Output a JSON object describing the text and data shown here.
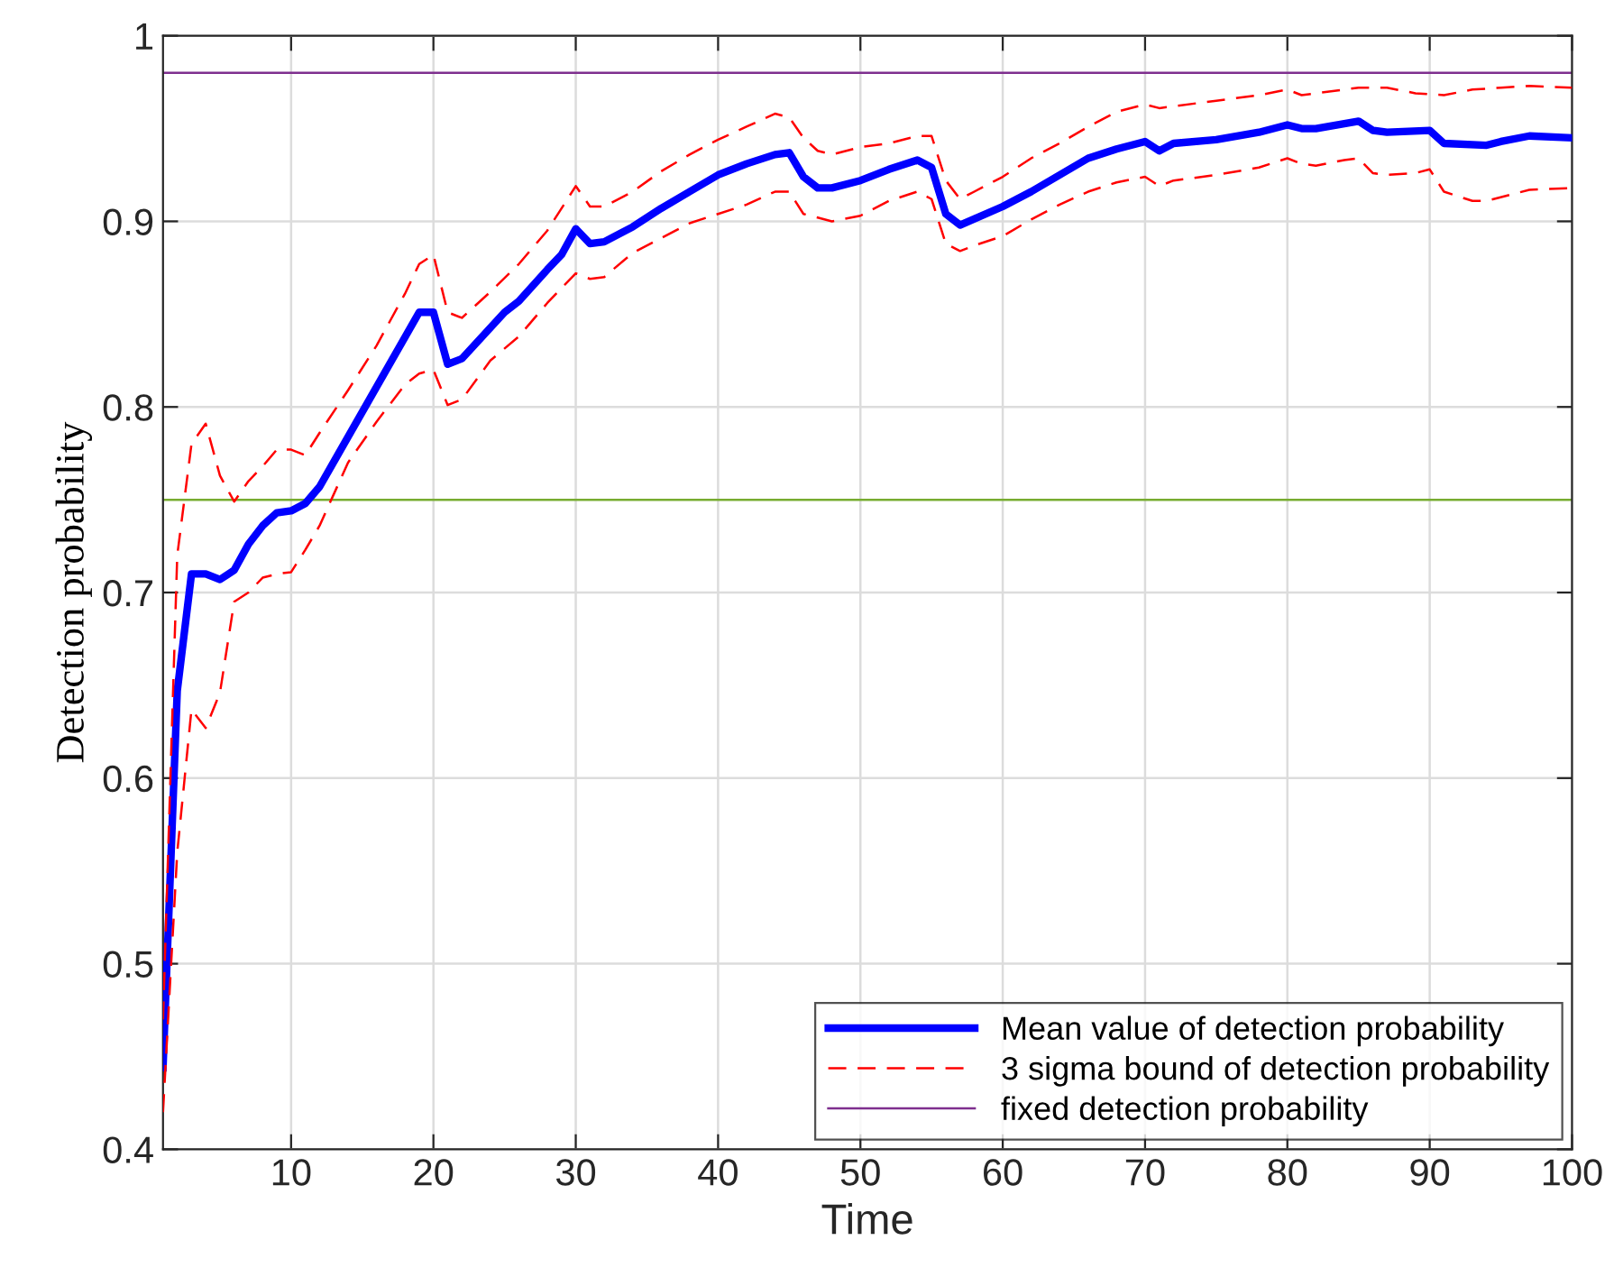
{
  "chart_data": {
    "type": "line",
    "xlabel": "Time",
    "ylabel": "Detection probability",
    "xlim": [
      1,
      100
    ],
    "ylim": [
      0.4,
      1
    ],
    "xticks": [
      10,
      20,
      30,
      40,
      50,
      60,
      70,
      80,
      90,
      100
    ],
    "yticks": [
      0.4,
      0.5,
      0.6,
      0.7,
      0.8,
      0.9,
      1
    ],
    "grid": true,
    "legend": "bottom right",
    "series": [
      {
        "name": "Mean value of detection probability",
        "color": "#0000ff",
        "line_style": "solid",
        "x": [
          1,
          2,
          3,
          4,
          5,
          6,
          7,
          8,
          9,
          10,
          11,
          12,
          19,
          20,
          21,
          22,
          25,
          26,
          28,
          29,
          30,
          31,
          32,
          34,
          36,
          38,
          40,
          42,
          44,
          45,
          46,
          47,
          48,
          50,
          52,
          54,
          55,
          56,
          57,
          60,
          62,
          64,
          66,
          68,
          70,
          71,
          72,
          75,
          78,
          80,
          81,
          82,
          85,
          86,
          87,
          90,
          91,
          94,
          95,
          97,
          100
        ],
        "values": [
          0.444,
          0.647,
          0.71,
          0.71,
          0.707,
          0.712,
          0.726,
          0.736,
          0.743,
          0.744,
          0.748,
          0.757,
          0.851,
          0.851,
          0.823,
          0.826,
          0.851,
          0.857,
          0.874,
          0.882,
          0.896,
          0.888,
          0.889,
          0.897,
          0.907,
          0.916,
          0.925,
          0.931,
          0.936,
          0.937,
          0.924,
          0.918,
          0.918,
          0.922,
          0.928,
          0.933,
          0.929,
          0.904,
          0.898,
          0.908,
          0.916,
          0.925,
          0.934,
          0.939,
          0.943,
          0.938,
          0.942,
          0.944,
          0.948,
          0.952,
          0.95,
          0.95,
          0.954,
          0.949,
          0.948,
          0.949,
          0.942,
          0.941,
          0.943,
          0.946,
          0.945
        ]
      },
      {
        "name": "3 sigma bound of detection probability",
        "color": "#ff0000",
        "line_style": "dashed",
        "x": [
          1,
          2,
          3,
          4,
          5,
          6,
          7,
          8,
          9,
          10,
          11,
          12,
          14,
          16,
          18,
          19,
          20,
          21,
          22,
          24,
          26,
          28,
          30,
          31,
          32,
          34,
          36,
          38,
          40,
          42,
          44,
          45,
          46,
          47,
          48,
          50,
          52,
          54,
          55,
          56,
          57,
          58,
          60,
          62,
          64,
          66,
          68,
          70,
          71,
          72,
          75,
          78,
          80,
          81,
          82,
          85,
          87,
          89,
          91,
          93,
          95,
          97,
          100
        ],
        "values": [
          0.47,
          0.72,
          0.78,
          0.791,
          0.763,
          0.749,
          0.76,
          0.768,
          0.777,
          0.777,
          0.774,
          0.786,
          0.809,
          0.833,
          0.861,
          0.877,
          0.882,
          0.851,
          0.848,
          0.862,
          0.877,
          0.895,
          0.919,
          0.908,
          0.908,
          0.916,
          0.927,
          0.936,
          0.944,
          0.951,
          0.958,
          0.956,
          0.945,
          0.938,
          0.936,
          0.94,
          0.942,
          0.946,
          0.946,
          0.922,
          0.912,
          0.916,
          0.924,
          0.934,
          0.942,
          0.951,
          0.959,
          0.963,
          0.961,
          0.962,
          0.965,
          0.968,
          0.971,
          0.968,
          0.969,
          0.972,
          0.972,
          0.969,
          0.968,
          0.971,
          0.972,
          0.973,
          0.972
        ]
      },
      {
        "color": "#ff0000",
        "line_style": "dashed",
        "x": [
          1,
          2,
          3,
          4,
          5,
          6,
          7,
          8,
          9,
          10,
          11,
          12,
          14,
          16,
          18,
          19,
          20,
          21,
          22,
          24,
          26,
          28,
          30,
          31,
          32,
          34,
          36,
          38,
          40,
          42,
          44,
          45,
          46,
          47,
          48,
          50,
          52,
          54,
          55,
          56,
          57,
          58,
          60,
          62,
          64,
          66,
          68,
          70,
          71,
          72,
          75,
          78,
          80,
          81,
          82,
          84,
          85,
          86,
          87,
          89,
          90,
          91,
          93,
          94,
          96,
          97,
          100
        ],
        "values": [
          0.42,
          0.56,
          0.637,
          0.627,
          0.646,
          0.695,
          0.7,
          0.708,
          0.71,
          0.711,
          0.723,
          0.736,
          0.77,
          0.792,
          0.812,
          0.818,
          0.82,
          0.801,
          0.804,
          0.825,
          0.838,
          0.856,
          0.872,
          0.869,
          0.87,
          0.883,
          0.891,
          0.899,
          0.904,
          0.909,
          0.916,
          0.916,
          0.904,
          0.902,
          0.9,
          0.903,
          0.911,
          0.916,
          0.912,
          0.888,
          0.884,
          0.887,
          0.892,
          0.901,
          0.909,
          0.916,
          0.921,
          0.924,
          0.919,
          0.922,
          0.925,
          0.929,
          0.934,
          0.931,
          0.93,
          0.933,
          0.934,
          0.926,
          0.925,
          0.926,
          0.928,
          0.916,
          0.911,
          0.911,
          0.915,
          0.917,
          0.918
        ]
      }
    ],
    "ref_lines": [
      {
        "axis": "y",
        "value": 0.98,
        "label": "fixed detection probability",
        "color": "#7e2f8e",
        "line_style": "solid"
      },
      {
        "axis": "y",
        "value": 0.75,
        "color": "#77ac30",
        "line_style": "solid"
      }
    ]
  }
}
